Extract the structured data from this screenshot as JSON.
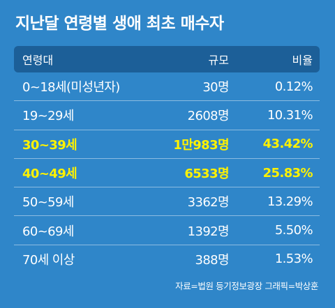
{
  "title": "지난달 연령별 생애 최초 매수자",
  "source": "자료=법원 등기정보광장  그래픽=박상훈",
  "colors": {
    "background": "#2f86c9",
    "header": "#1c5f98",
    "highlight": "#fff200"
  },
  "chart_data": {
    "type": "table",
    "columns": [
      "연령대",
      "규모",
      "비율"
    ],
    "rows": [
      {
        "age": "0~18세(미성년자)",
        "count": "30명",
        "ratio": "0.12%",
        "highlight": false
      },
      {
        "age": "19~29세",
        "count": "2608명",
        "ratio": "10.31%",
        "highlight": false
      },
      {
        "age": "30~39세",
        "count": "1만983명",
        "ratio": "43.42%",
        "highlight": true
      },
      {
        "age": "40~49세",
        "count": "6533명",
        "ratio": "25.83%",
        "highlight": true
      },
      {
        "age": "50~59세",
        "count": "3362명",
        "ratio": "13.29%",
        "highlight": false
      },
      {
        "age": "60~69세",
        "count": "1392명",
        "ratio": "5.50%",
        "highlight": false
      },
      {
        "age": "70세 이상",
        "count": "388명",
        "ratio": "1.53%",
        "highlight": false
      }
    ]
  }
}
